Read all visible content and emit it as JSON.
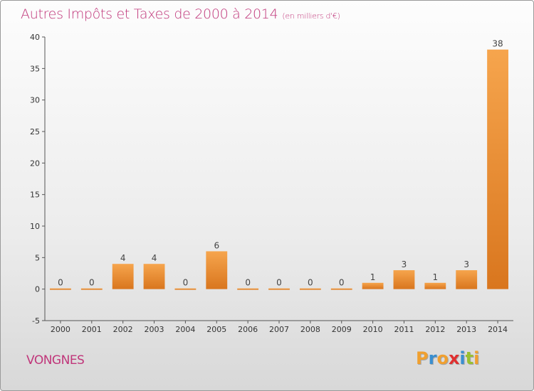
{
  "header": {
    "title": "Autres Impôts et Taxes de 2000 à 2014",
    "unit": "(en milliers d'€)"
  },
  "footer": {
    "commune": "VONGNES",
    "logo": "Proxiti"
  },
  "colors": {
    "title": "#c0367a",
    "bar_light": "#f6a54d",
    "bar_dark": "#d9761e",
    "axis": "#555555",
    "logo_letters": [
      "#f0a030",
      "#3a8fd0",
      "#f0a030",
      "#e03030",
      "#3a8fd0",
      "#9ac030",
      "#f0a030"
    ]
  },
  "chart_data": {
    "type": "bar",
    "title": "Autres Impôts et Taxes de 2000 à 2014",
    "subtitle": "(en milliers d'€)",
    "xlabel": "",
    "ylabel": "",
    "categories": [
      "2000",
      "2001",
      "2002",
      "2003",
      "2004",
      "2005",
      "2006",
      "2007",
      "2008",
      "2009",
      "2010",
      "2011",
      "2012",
      "2013",
      "2014"
    ],
    "values": [
      0,
      0,
      4,
      4,
      0,
      6,
      0,
      0,
      0,
      0,
      1,
      3,
      1,
      3,
      38
    ],
    "ylim": [
      -5,
      40
    ],
    "yticks": [
      -5,
      0,
      5,
      10,
      15,
      20,
      25,
      30,
      35,
      40
    ],
    "grid": false,
    "legend": "none"
  }
}
